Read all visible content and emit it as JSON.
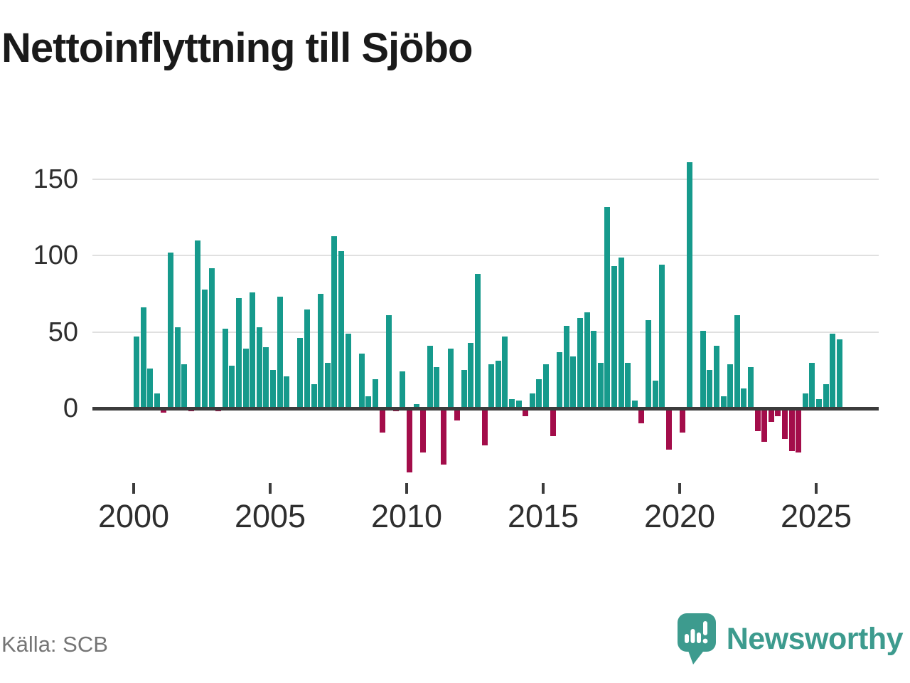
{
  "title": "Nettoinflyttning till Sjöbo",
  "source": {
    "text": "Källa: SCB"
  },
  "brand": {
    "name": "Newsworthy"
  },
  "colors": {
    "positive": "#169a8c",
    "negative": "#a30d4a",
    "axis": "#3c3c3c",
    "grid": "#e0e0e0",
    "label": "#2e2e2e",
    "title": "#1a1a1a",
    "source_text": "#757575",
    "brand": "#3d9b8e"
  },
  "chart_data": {
    "type": "bar",
    "title": "Nettoinflyttning till Sjöbo",
    "frequency": "quarterly",
    "x_start_year": 2000,
    "xlabel": "",
    "ylabel": "",
    "y_ticks": [
      150,
      100,
      50,
      0
    ],
    "y_tick_labels": [
      "150",
      "100",
      "50",
      "0"
    ],
    "x_tick_years": [
      2000,
      2005,
      2010,
      2015,
      2020,
      2025
    ],
    "x_tick_labels": [
      "2000",
      "2005",
      "2010",
      "2015",
      "2020",
      "2025"
    ],
    "ylim": [
      -50,
      170
    ],
    "grid": "horizontal",
    "legend": "none",
    "series": [
      {
        "year": 2000,
        "q": [
          47,
          66,
          26,
          10
        ]
      },
      {
        "year": 2001,
        "q": [
          -3,
          102,
          53,
          29
        ]
      },
      {
        "year": 2002,
        "q": [
          -2,
          110,
          78,
          92
        ]
      },
      {
        "year": 2003,
        "q": [
          -2,
          52,
          28,
          72
        ]
      },
      {
        "year": 2004,
        "q": [
          39,
          76,
          53,
          40
        ]
      },
      {
        "year": 2005,
        "q": [
          25,
          73,
          21,
          0
        ]
      },
      {
        "year": 2006,
        "q": [
          46,
          65,
          16,
          75
        ]
      },
      {
        "year": 2007,
        "q": [
          30,
          113,
          103,
          49
        ]
      },
      {
        "year": 2008,
        "q": [
          0,
          36,
          8,
          19
        ]
      },
      {
        "year": 2009,
        "q": [
          -16,
          61,
          -2,
          24
        ]
      },
      {
        "year": 2010,
        "q": [
          -42,
          3,
          -29,
          41
        ]
      },
      {
        "year": 2011,
        "q": [
          27,
          -37,
          39,
          -8
        ]
      },
      {
        "year": 2012,
        "q": [
          25,
          43,
          88,
          -24
        ]
      },
      {
        "year": 2013,
        "q": [
          29,
          31,
          47,
          6
        ]
      },
      {
        "year": 2014,
        "q": [
          5,
          -5,
          10,
          19
        ]
      },
      {
        "year": 2015,
        "q": [
          29,
          -18,
          37,
          54
        ]
      },
      {
        "year": 2016,
        "q": [
          34,
          59,
          63,
          51
        ]
      },
      {
        "year": 2017,
        "q": [
          30,
          132,
          93,
          99
        ]
      },
      {
        "year": 2018,
        "q": [
          30,
          5,
          -10,
          58
        ]
      },
      {
        "year": 2019,
        "q": [
          18,
          94,
          -27,
          0
        ]
      },
      {
        "year": 2020,
        "q": [
          -16,
          161,
          0,
          51
        ]
      },
      {
        "year": 2021,
        "q": [
          25,
          41,
          8,
          29
        ]
      },
      {
        "year": 2022,
        "q": [
          61,
          13,
          27,
          -15
        ]
      },
      {
        "year": 2023,
        "q": [
          -22,
          -9,
          -5,
          -20
        ]
      },
      {
        "year": 2024,
        "q": [
          -28,
          -29,
          10,
          30
        ]
      },
      {
        "year": 2025,
        "q": [
          6,
          16,
          49,
          45
        ]
      }
    ]
  }
}
